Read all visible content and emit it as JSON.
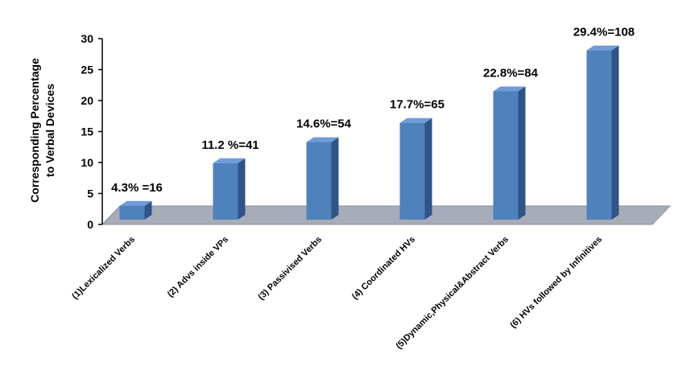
{
  "chart_data": {
    "type": "bar",
    "categories": [
      "(1)Lexicalized Verbs",
      "(2) Advs inside VPs",
      "(3) Passivised Verbs",
      "(4) Coordinated HVs",
      "(5)Dynamic,Physical&Abstract Verbs",
      "(6) HVs followed by Infinitives"
    ],
    "values": [
      4.3,
      11.2,
      14.6,
      17.7,
      22.8,
      29.4
    ],
    "data_labels": [
      "4.3% =16",
      "11.2 %=41",
      "14.6%=54",
      "17.7%=65",
      "22.8%=84",
      "29.4%=108"
    ],
    "title": "",
    "xlabel": "",
    "ylabel_lines": [
      "Corresponding Percentage",
      "to Verbal Devices"
    ],
    "ylim": [
      0,
      30
    ],
    "yticks": [
      0,
      5,
      10,
      15,
      20,
      25,
      30
    ],
    "grid": false,
    "legend": "none",
    "bar_color": "#4F81BD",
    "bar_side_color": "#2E5488",
    "bar_top_color": "#6F9ADB",
    "floor_color": "#A6ADB8"
  }
}
